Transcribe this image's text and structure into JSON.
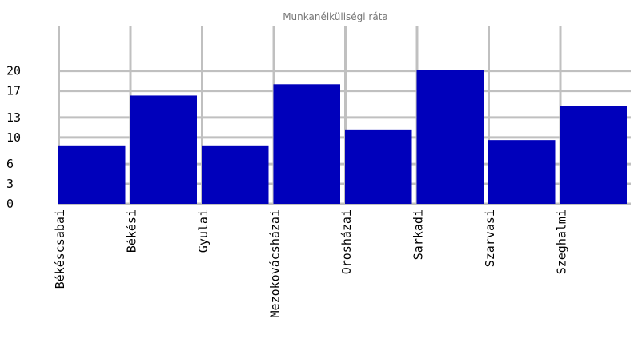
{
  "chart_data": {
    "type": "bar",
    "title": "Munkanélküliségi ráta",
    "categories": [
      "Békéscsabai",
      "Békési",
      "Gyulai",
      "Mezokovácsházai",
      "Orosházai",
      "Sarkadi",
      "Szarvasi",
      "Szeghalmi"
    ],
    "series": [
      {
        "values": [
          8.8,
          16.3,
          8.8,
          18.0,
          11.2,
          20.2,
          9.6,
          14.7
        ]
      }
    ],
    "yticks": [
      0,
      3,
      6,
      10,
      13,
      17,
      20
    ],
    "ylim": [
      0,
      20.2
    ],
    "grid": true,
    "colors": {
      "bar": "#0000bb",
      "grid": "#c0c0c0"
    }
  }
}
